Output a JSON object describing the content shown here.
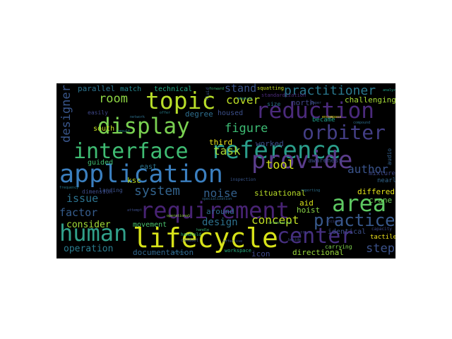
{
  "word_cloud": {
    "background": "#000000",
    "words": [
      {
        "text": "lifecycle",
        "color": "#d7e219"
      },
      {
        "text": "application",
        "color": "#3b7fbf"
      },
      {
        "text": "interface",
        "color": "#3fbc73"
      },
      {
        "text": "reference",
        "color": "#2a9d8a"
      },
      {
        "text": "requirement",
        "color": "#482374"
      },
      {
        "text": "reduction",
        "color": "#4b2a7c"
      },
      {
        "text": "provide",
        "color": "#5b3d8c"
      },
      {
        "text": "display",
        "color": "#7ad151"
      },
      {
        "text": "topic",
        "color": "#b8de29"
      },
      {
        "text": "human",
        "color": "#31a08a"
      },
      {
        "text": "center",
        "color": "#462f80"
      },
      {
        "text": "area",
        "color": "#5ec962"
      },
      {
        "text": "orbiter",
        "color": "#433e85"
      },
      {
        "text": "practice",
        "color": "#38598c"
      },
      {
        "text": "practitioner",
        "color": "#2a788e"
      },
      {
        "text": "designer",
        "color": "#39568c"
      },
      {
        "text": "system",
        "color": "#33638d"
      },
      {
        "text": "factor",
        "color": "#365d8d"
      },
      {
        "text": "room",
        "color": "#8fd744"
      },
      {
        "text": "figure",
        "color": "#3dbc74"
      },
      {
        "text": "tool",
        "color": "#d2e21b"
      },
      {
        "text": "task",
        "color": "#a8db34"
      },
      {
        "text": "author",
        "color": "#3a548c"
      },
      {
        "text": "concept",
        "color": "#c2df23"
      },
      {
        "text": "noise",
        "color": "#34618d"
      },
      {
        "text": "design",
        "color": "#2d718e"
      },
      {
        "text": "cover",
        "color": "#bddf26"
      },
      {
        "text": "stand",
        "color": "#3a538b"
      },
      {
        "text": "step",
        "color": "#3b528b"
      },
      {
        "text": "issue",
        "color": "#2c728e"
      },
      {
        "text": "consider",
        "color": "#a2da37"
      },
      {
        "text": "operation",
        "color": "#2a7b8e"
      },
      {
        "text": "documentation",
        "color": "#31678e"
      },
      {
        "text": "directional",
        "color": "#9bd93c"
      },
      {
        "text": "identical",
        "color": "#3c4f8a"
      },
      {
        "text": "challenging",
        "color": "#a5db36"
      },
      {
        "text": "third",
        "color": "#ece51b"
      },
      {
        "text": "worked",
        "color": "#3d4e8a"
      },
      {
        "text": "situational",
        "color": "#bade28"
      },
      {
        "text": "differed",
        "color": "#e5e419"
      },
      {
        "text": "crane",
        "color": "#6ece58"
      },
      {
        "text": "hoist",
        "color": "#8bd646"
      },
      {
        "text": "aid",
        "color": "#d8e219"
      },
      {
        "text": "around",
        "color": "#2f6b8e"
      },
      {
        "text": "movement",
        "color": "#4ac16d"
      },
      {
        "text": "icon",
        "color": "#3f4889"
      },
      {
        "text": "degree",
        "color": "#2e6e8e"
      },
      {
        "text": "housed",
        "color": "#3c508b"
      },
      {
        "text": "parallel",
        "color": "#2c738e"
      },
      {
        "text": "match",
        "color": "#24868e"
      },
      {
        "text": "technical",
        "color": "#22a884"
      },
      {
        "text": "south",
        "color": "#c5e021"
      },
      {
        "text": "north",
        "color": "#404588"
      },
      {
        "text": "ksc",
        "color": "#bddf26"
      },
      {
        "text": "east",
        "color": "#2b748e"
      },
      {
        "text": "guided",
        "color": "#40bd72"
      },
      {
        "text": "dimension",
        "color": "#3e4c8a"
      },
      {
        "text": "easily",
        "color": "#3f4788"
      },
      {
        "text": "nearly",
        "color": "#31668e"
      },
      {
        "text": "mixture",
        "color": "#3e4989"
      },
      {
        "text": "tactile",
        "color": "#f1e51d"
      },
      {
        "text": "became",
        "color": "#1f9e89"
      },
      {
        "text": "awareness",
        "color": "#3d4d8a"
      },
      {
        "text": "standardization",
        "color": "#4e2d7e"
      },
      {
        "text": "size",
        "color": "#2b758e"
      },
      {
        "text": "squatting",
        "color": "#c8e020"
      },
      {
        "text": "landing",
        "color": "#3b518b"
      },
      {
        "text": "workspace",
        "color": "#26ad81"
      },
      {
        "text": "audio",
        "color": "#34618d"
      },
      {
        "text": "carrying",
        "color": "#7fd34e"
      },
      {
        "text": "inspection",
        "color": "#39568c"
      },
      {
        "text": "capacity",
        "color": "#3e4a89"
      },
      {
        "text": "frequency",
        "color": "#297a8e"
      },
      {
        "text": "handhold",
        "color": "#2fb47c"
      },
      {
        "text": "conduct",
        "color": "#3c508b"
      },
      {
        "text": "forward",
        "color": "#38b977"
      },
      {
        "text": "effective",
        "color": "#3b528b"
      },
      {
        "text": "operational",
        "color": "#95d840"
      },
      {
        "text": "specialization",
        "color": "#2f6c8e"
      },
      {
        "text": "orientation",
        "color": "#5cc863"
      },
      {
        "text": "accident",
        "color": "#3f4788"
      },
      {
        "text": "reporting",
        "color": "#2d708e"
      },
      {
        "text": "affect",
        "color": "#404387"
      },
      {
        "text": "encompass",
        "color": "#ece51b"
      },
      {
        "text": "compound",
        "color": "#2e6f8e"
      },
      {
        "text": "handle",
        "color": "#36b677"
      },
      {
        "text": "analyzed",
        "color": "#1fa088"
      },
      {
        "text": "fluid",
        "color": "#3a538b"
      },
      {
        "text": "network",
        "color": "#2d718e"
      },
      {
        "text": "beside",
        "color": "#3e4c8a"
      },
      {
        "text": "result",
        "color": "#20928c"
      },
      {
        "text": "attempt",
        "color": "#3d4e8a"
      },
      {
        "text": "offer",
        "color": "#277f8e"
      },
      {
        "text": "paper",
        "color": "#3a548c"
      },
      {
        "text": "access",
        "color": "#2e6e8e"
      },
      {
        "text": "measure",
        "color": "#21918c"
      }
    ]
  }
}
